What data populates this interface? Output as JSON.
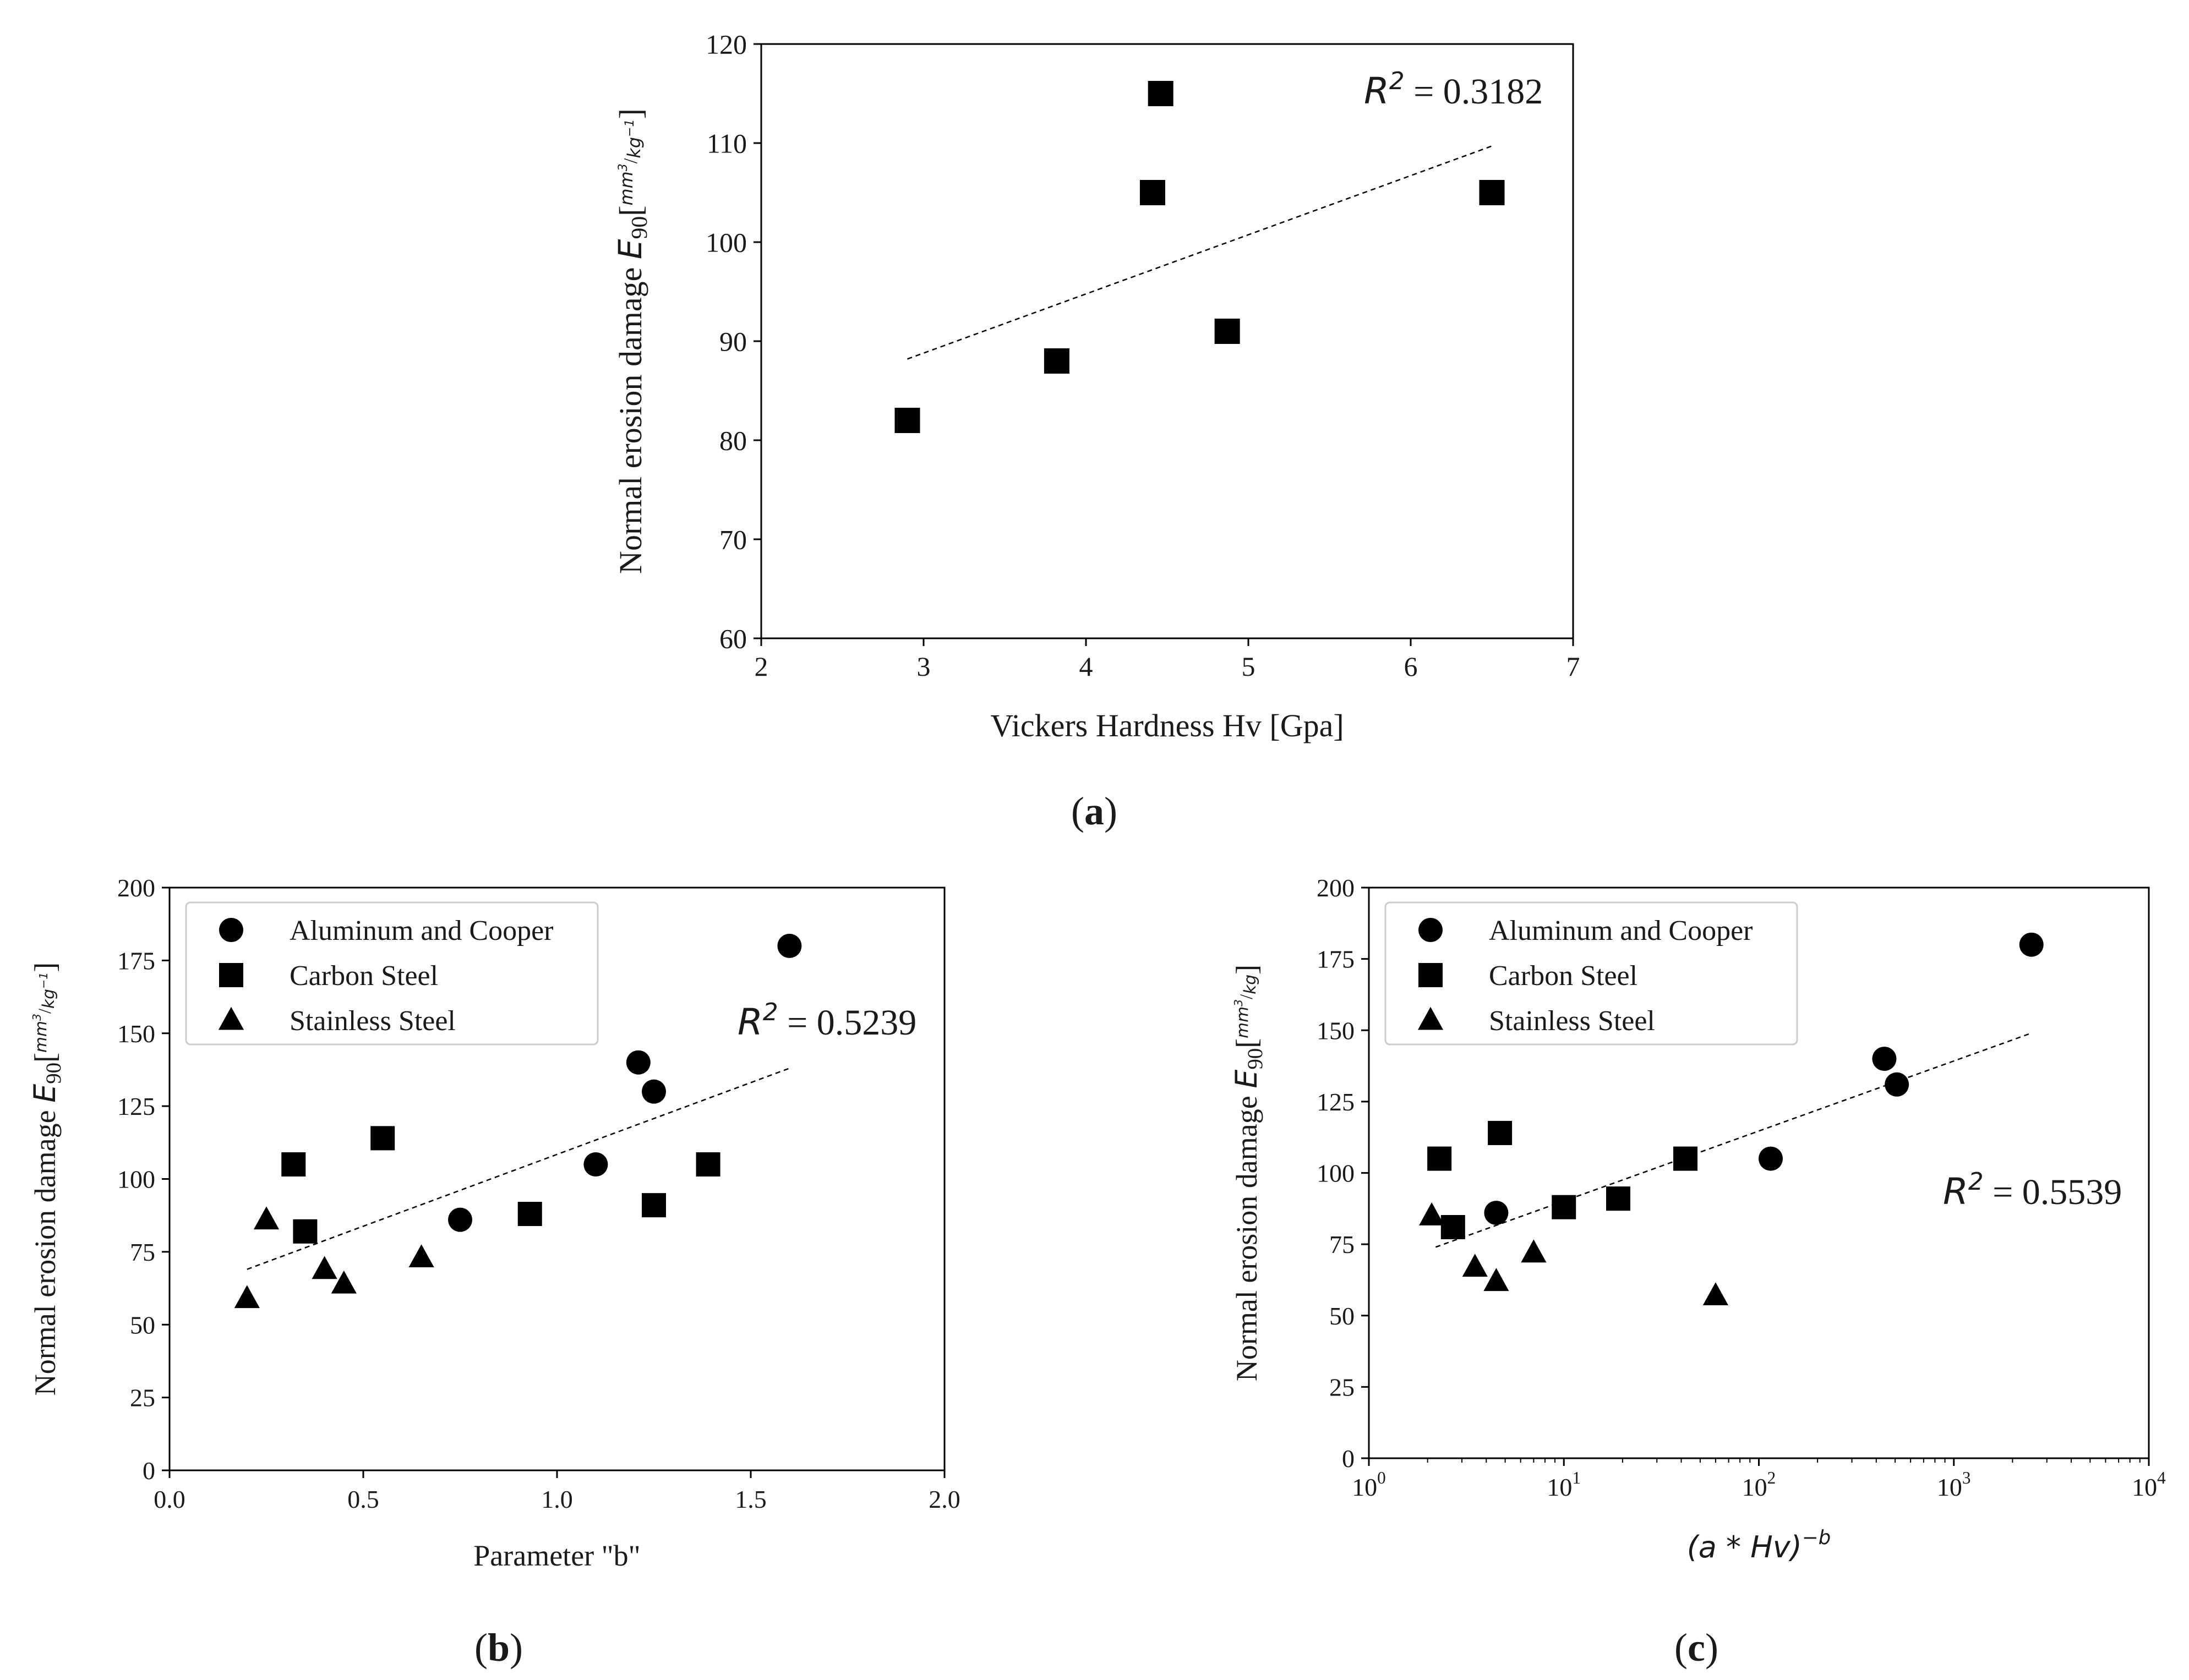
{
  "chart_data": [
    {
      "panel_label": "a",
      "type": "scatter",
      "title": "",
      "xlabel": "Vickers Hardness Hv [Gpa]",
      "ylabel_text": "Normal erosion damage",
      "ylabel_symbol": "E",
      "ylabel_subscript": "90",
      "ylabel_unit_num": "mm",
      "ylabel_unit_num_exp": "3",
      "ylabel_unit_den": "kg",
      "ylabel_unit_den_exp": "−1",
      "x_scale": "linear",
      "xlim": [
        2,
        7
      ],
      "ylim": [
        60,
        120
      ],
      "xticks": [
        2,
        3,
        4,
        5,
        6,
        7
      ],
      "xtick_labels": [
        "2",
        "3",
        "4",
        "5",
        "6",
        "7"
      ],
      "yticks": [
        60,
        70,
        80,
        90,
        100,
        110,
        120
      ],
      "ytick_labels": [
        "60",
        "70",
        "80",
        "90",
        "100",
        "110",
        "120"
      ],
      "grid": false,
      "legend": null,
      "series": [
        {
          "name": "Carbon Steel",
          "marker": "square",
          "points": [
            [
              2.9,
              82
            ],
            [
              3.82,
              88
            ],
            [
              4.41,
              105
            ],
            [
              4.46,
              115
            ],
            [
              4.87,
              91
            ],
            [
              6.5,
              105
            ]
          ]
        }
      ],
      "trendline": {
        "style": "dashed",
        "x": [
          2.9,
          6.5
        ],
        "y": [
          88.2,
          109.7
        ]
      },
      "annotation": {
        "symbol": "R",
        "exponent": "2",
        "value": "= 0.3182"
      }
    },
    {
      "panel_label": "b",
      "type": "scatter",
      "title": "",
      "xlabel": "Parameter \"b\"",
      "ylabel_text": "Normal erosion damage",
      "ylabel_symbol": "E",
      "ylabel_subscript": "90",
      "ylabel_unit_num": "mm",
      "ylabel_unit_num_exp": "3",
      "ylabel_unit_den": "kg",
      "ylabel_unit_den_exp": "−1",
      "x_scale": "linear",
      "xlim": [
        0.0,
        2.0
      ],
      "ylim": [
        0,
        200
      ],
      "xticks": [
        0.0,
        0.5,
        1.0,
        1.5,
        2.0
      ],
      "xtick_labels": [
        "0.0",
        "0.5",
        "1.0",
        "1.5",
        "2.0"
      ],
      "yticks": [
        0,
        25,
        50,
        75,
        100,
        125,
        150,
        175,
        200
      ],
      "ytick_labels": [
        "0",
        "25",
        "50",
        "75",
        "100",
        "125",
        "150",
        "175",
        "200"
      ],
      "grid": false,
      "legend": {
        "placement": "top-left",
        "entries": [
          {
            "label": "Aluminum and Cooper",
            "marker": "circle"
          },
          {
            "label": "Carbon Steel",
            "marker": "square"
          },
          {
            "label": "Stainless Steel",
            "marker": "triangle"
          }
        ]
      },
      "series": [
        {
          "name": "Aluminum and Cooper",
          "marker": "circle",
          "points": [
            [
              0.75,
              86
            ],
            [
              1.1,
              105
            ],
            [
              1.21,
              140
            ],
            [
              1.25,
              130
            ],
            [
              1.6,
              180
            ]
          ]
        },
        {
          "name": "Carbon Steel",
          "marker": "square",
          "points": [
            [
              0.32,
              105
            ],
            [
              0.35,
              82
            ],
            [
              0.55,
              114
            ],
            [
              0.93,
              88
            ],
            [
              1.25,
              91
            ],
            [
              1.39,
              105
            ]
          ]
        },
        {
          "name": "Stainless Steel",
          "marker": "triangle",
          "points": [
            [
              0.2,
              59
            ],
            [
              0.25,
              86
            ],
            [
              0.4,
              69
            ],
            [
              0.45,
              64
            ],
            [
              0.65,
              73
            ]
          ]
        }
      ],
      "trendline": {
        "style": "dashed",
        "x": [
          0.2,
          1.6
        ],
        "y": [
          69,
          138
        ]
      },
      "annotation": {
        "symbol": "R",
        "exponent": "2",
        "value": "= 0.5239"
      }
    },
    {
      "panel_label": "c",
      "type": "scatter",
      "title": "",
      "xlabel_base": "(a * Hv)",
      "xlabel_exp": "−b",
      "ylabel_text": "Normal erosion damage",
      "ylabel_symbol": "E",
      "ylabel_subscript": "90",
      "ylabel_unit_num": "mm",
      "ylabel_unit_num_exp": "3",
      "ylabel_unit_den": "kg",
      "ylabel_unit_den_exp": "",
      "x_scale": "log",
      "xlim": [
        1,
        10000
      ],
      "ylim": [
        0,
        200
      ],
      "xticks": [
        1,
        10,
        100,
        1000,
        10000
      ],
      "xtick_bases": [
        "10",
        "10",
        "10",
        "10",
        "10"
      ],
      "xtick_exps": [
        "0",
        "1",
        "2",
        "3",
        "4"
      ],
      "yticks": [
        0,
        25,
        50,
        75,
        100,
        125,
        150,
        175,
        200
      ],
      "ytick_labels": [
        "0",
        "25",
        "50",
        "75",
        "100",
        "125",
        "150",
        "175",
        "200"
      ],
      "grid": false,
      "legend": {
        "placement": "top-left",
        "entries": [
          {
            "label": "Aluminum and Cooper",
            "marker": "circle"
          },
          {
            "label": "Carbon Steel",
            "marker": "square"
          },
          {
            "label": "Stainless Steel",
            "marker": "triangle"
          }
        ]
      },
      "series": [
        {
          "name": "Aluminum and Cooper",
          "marker": "circle",
          "points": [
            [
              4.5,
              86
            ],
            [
              115,
              105
            ],
            [
              440,
              140
            ],
            [
              510,
              131
            ],
            [
              2500,
              180
            ]
          ]
        },
        {
          "name": "Carbon Steel",
          "marker": "square",
          "points": [
            [
              2.3,
              105
            ],
            [
              2.7,
              81
            ],
            [
              4.7,
              114
            ],
            [
              10,
              88
            ],
            [
              19,
              91
            ],
            [
              42,
              105
            ]
          ]
        },
        {
          "name": "Stainless Steel",
          "marker": "triangle",
          "points": [
            [
              2.1,
              85
            ],
            [
              3.5,
              67
            ],
            [
              4.5,
              62
            ],
            [
              7,
              72
            ],
            [
              60,
              57
            ]
          ]
        }
      ],
      "trendline": {
        "style": "dashed",
        "x": [
          2.2,
          2500
        ],
        "y": [
          74,
          149
        ]
      },
      "annotation": {
        "symbol": "R",
        "exponent": "2",
        "value": "= 0.5539"
      }
    }
  ]
}
